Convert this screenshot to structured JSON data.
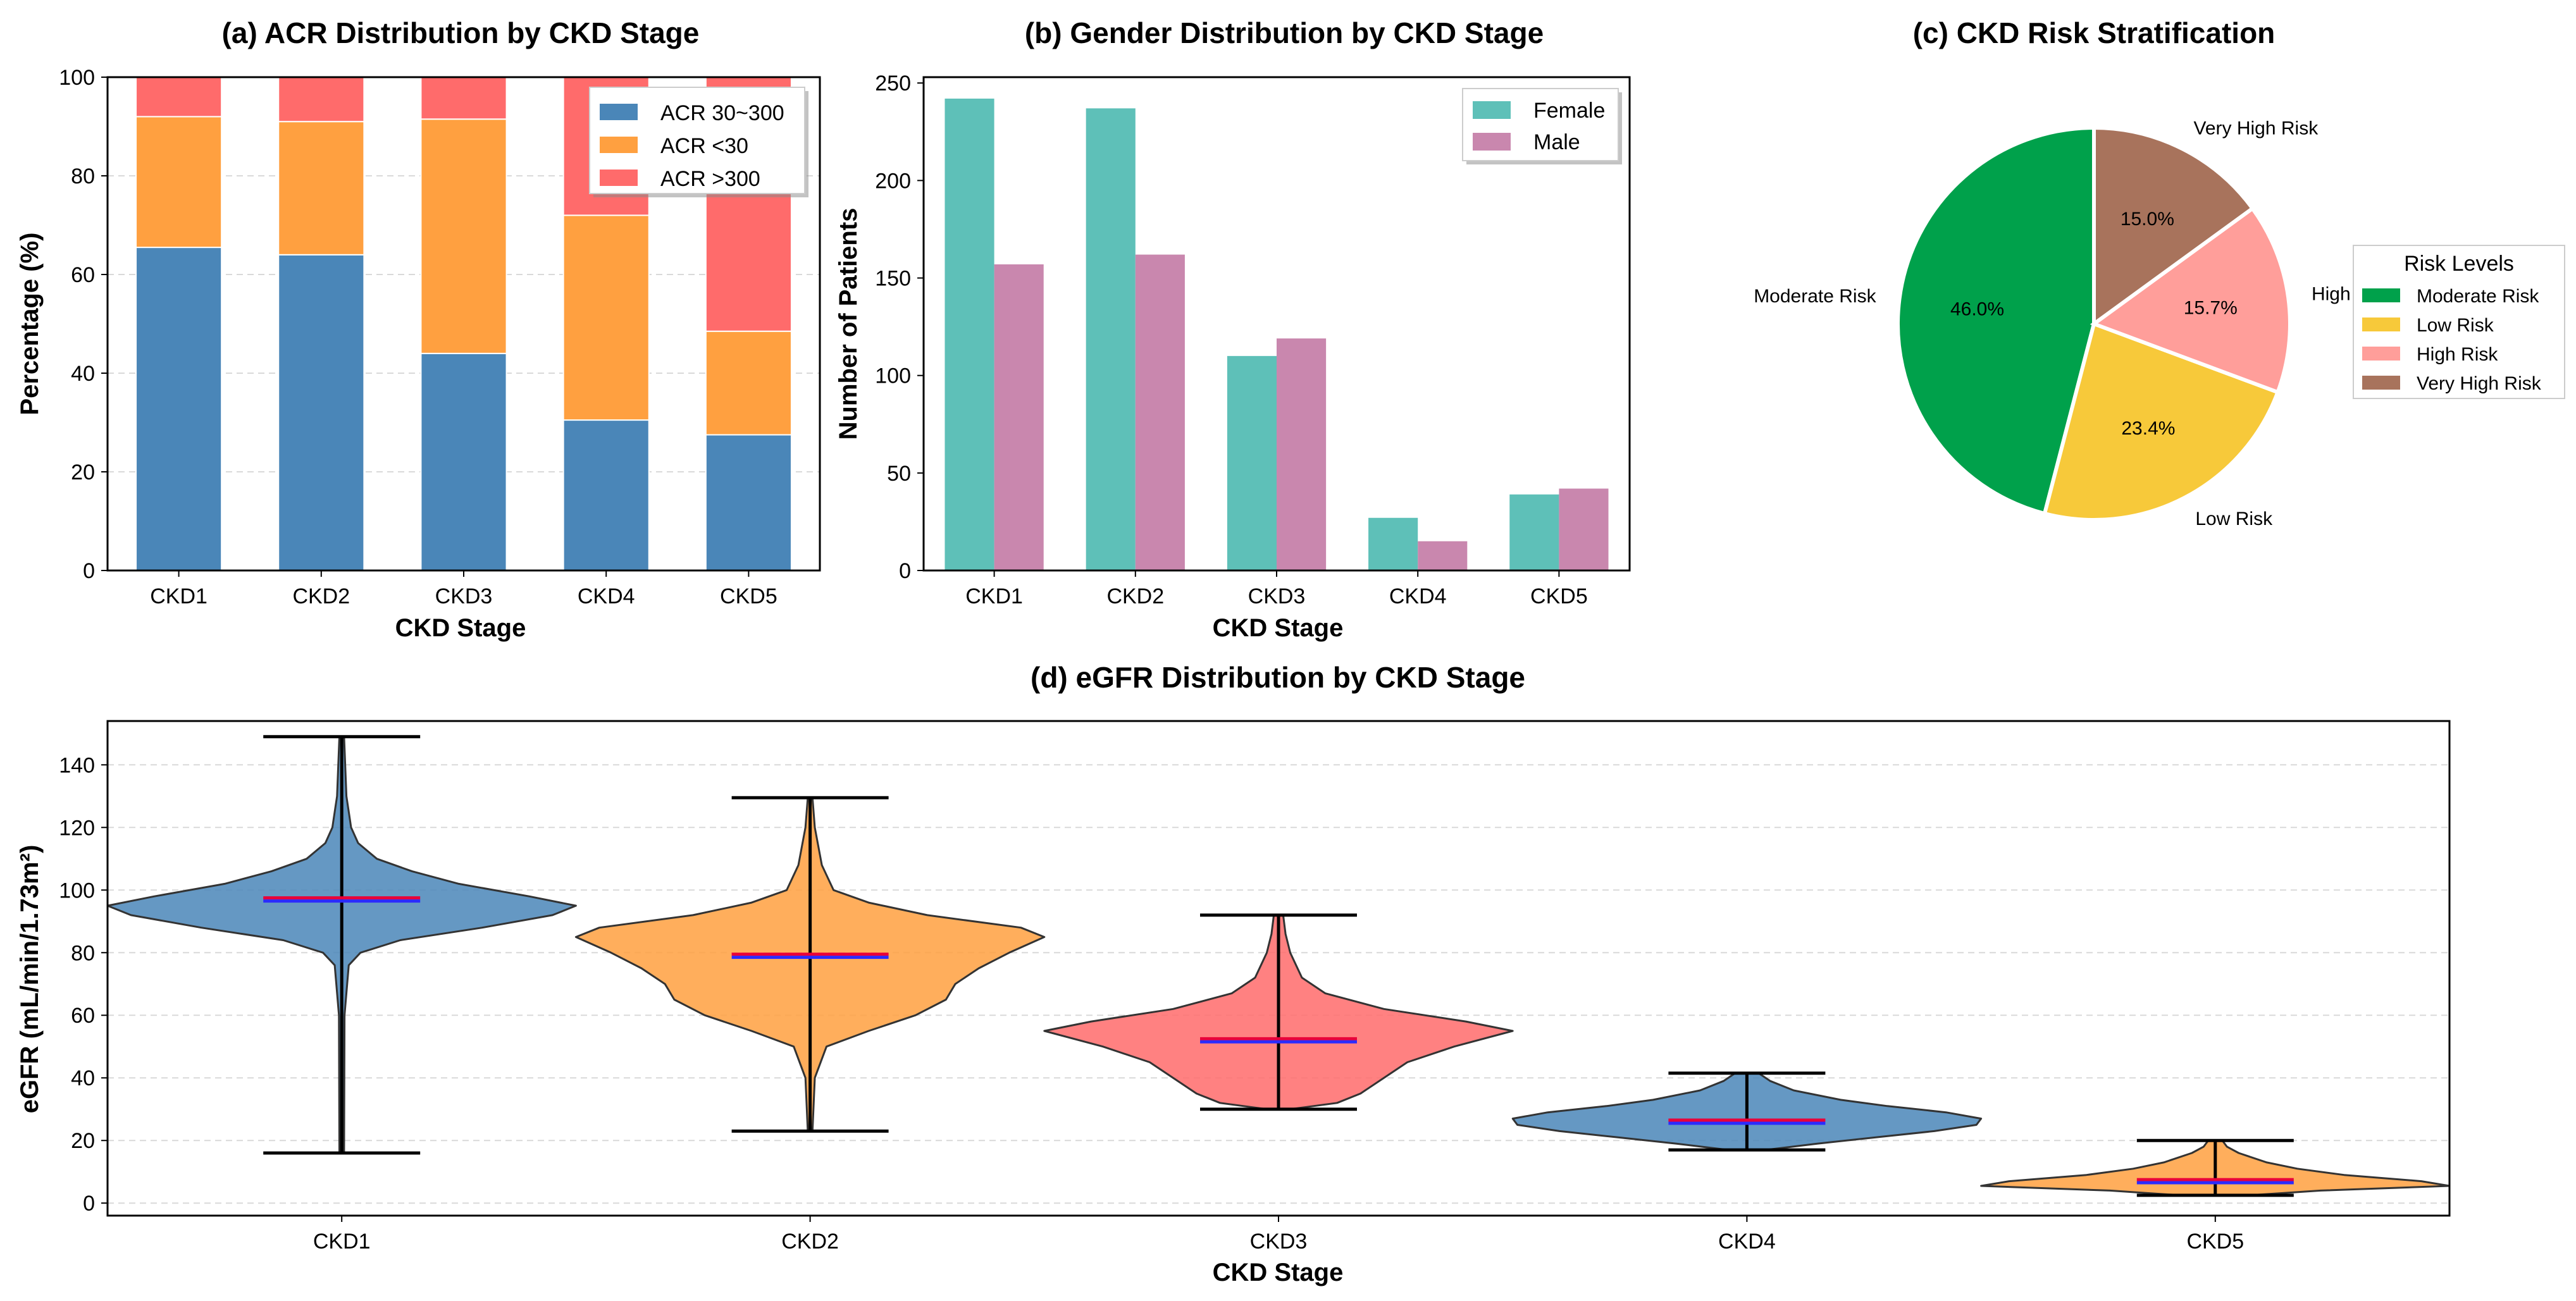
{
  "chart_data": [
    {
      "panel": "a",
      "type": "bar",
      "stacked": true,
      "title": "(a) ACR Distribution by CKD Stage",
      "xlabel": "CKD Stage",
      "ylabel": "Percentage (%)",
      "categories": [
        "CKD1",
        "CKD2",
        "CKD3",
        "CKD4",
        "CKD5"
      ],
      "ylim": [
        0,
        100
      ],
      "yticks": [
        0,
        20,
        40,
        60,
        80,
        100
      ],
      "series": [
        {
          "name": "ACR 30~300",
          "color": "#4a86b8",
          "values": [
            65.5,
            64.0,
            44.0,
            30.5,
            27.5
          ]
        },
        {
          "name": "ACR <30",
          "color": "#ffa040",
          "values": [
            26.5,
            27.0,
            47.5,
            41.5,
            21.0
          ]
        },
        {
          "name": "ACR >300",
          "color": "#ff6b6b",
          "values": [
            8.0,
            9.0,
            8.5,
            28.0,
            51.5
          ]
        }
      ],
      "legend_position": "top-right",
      "grid": true
    },
    {
      "panel": "b",
      "type": "bar",
      "grouped": true,
      "title": "(b) Gender Distribution by CKD Stage",
      "xlabel": "CKD Stage",
      "ylabel": "Number of Patients",
      "categories": [
        "CKD1",
        "CKD2",
        "CKD3",
        "CKD4",
        "CKD5"
      ],
      "ylim": [
        0,
        253
      ],
      "yticks": [
        0,
        50,
        100,
        150,
        200,
        250
      ],
      "series": [
        {
          "name": "Female",
          "color": "#5ec0b8",
          "values": [
            242,
            237,
            110,
            27,
            39
          ]
        },
        {
          "name": "Male",
          "color": "#c987ae",
          "values": [
            157,
            162,
            119,
            15,
            42
          ]
        }
      ],
      "legend_position": "top-right",
      "grid": false
    },
    {
      "panel": "c",
      "type": "pie",
      "title": "(c) CKD Risk Stratification",
      "slices": [
        {
          "label": "Moderate Risk",
          "value": 46.0,
          "pct_label": "46.0%",
          "color": "#00a14b"
        },
        {
          "label": "Low Risk",
          "value": 23.4,
          "pct_label": "23.4%",
          "color": "#f7c93a"
        },
        {
          "label": "High Risk",
          "value": 15.7,
          "pct_label": "15.7%",
          "color": "#ff9e9a",
          "outer_label": "High"
        },
        {
          "label": "Very High Risk",
          "value": 15.0,
          "pct_label": "15.0%",
          "color": "#a8735c"
        }
      ],
      "legend_title": "Risk Levels",
      "legend_position": "right"
    },
    {
      "panel": "d",
      "type": "violin",
      "title": "(d) eGFR Distribution by CKD Stage",
      "xlabel": "CKD Stage",
      "ylabel": "eGFR (mL/min/1.73m²)",
      "categories": [
        "CKD1",
        "CKD2",
        "CKD3",
        "CKD4",
        "CKD5"
      ],
      "ylim": [
        -4,
        154
      ],
      "yticks": [
        0,
        20,
        40,
        60,
        80,
        100,
        120,
        140
      ],
      "grid": true,
      "violins": [
        {
          "category": "CKD1",
          "min": 16,
          "max": 149,
          "mean": 97.5,
          "median": 96.5,
          "color": "#4a86b8",
          "density": [
            [
              16,
              0.01
            ],
            [
              60,
              0.012
            ],
            [
              76,
              0.03
            ],
            [
              80,
              0.08
            ],
            [
              84,
              0.25
            ],
            [
              88,
              0.6
            ],
            [
              92,
              0.9
            ],
            [
              95,
              1.0
            ],
            [
              98,
              0.8
            ],
            [
              102,
              0.5
            ],
            [
              106,
              0.3
            ],
            [
              110,
              0.15
            ],
            [
              115,
              0.07
            ],
            [
              120,
              0.04
            ],
            [
              130,
              0.02
            ],
            [
              149,
              0.01
            ]
          ]
        },
        {
          "category": "CKD2",
          "min": 23,
          "max": 129.5,
          "mean": 79.5,
          "median": 78.5,
          "color": "#ffa040",
          "density": [
            [
              23,
              0.01
            ],
            [
              40,
              0.02
            ],
            [
              50,
              0.07
            ],
            [
              55,
              0.25
            ],
            [
              60,
              0.45
            ],
            [
              65,
              0.58
            ],
            [
              70,
              0.62
            ],
            [
              75,
              0.72
            ],
            [
              80,
              0.85
            ],
            [
              85,
              1.0
            ],
            [
              88,
              0.9
            ],
            [
              92,
              0.5
            ],
            [
              96,
              0.25
            ],
            [
              100,
              0.1
            ],
            [
              108,
              0.05
            ],
            [
              120,
              0.02
            ],
            [
              129.5,
              0.01
            ]
          ]
        },
        {
          "category": "CKD3",
          "min": 30,
          "max": 92,
          "mean": 52.5,
          "median": 51.5,
          "color": "#ff6b6b",
          "density": [
            [
              30,
              0.05
            ],
            [
              32,
              0.25
            ],
            [
              35,
              0.35
            ],
            [
              40,
              0.45
            ],
            [
              45,
              0.55
            ],
            [
              50,
              0.75
            ],
            [
              55,
              1.0
            ],
            [
              58,
              0.8
            ],
            [
              62,
              0.45
            ],
            [
              67,
              0.2
            ],
            [
              72,
              0.1
            ],
            [
              80,
              0.05
            ],
            [
              86,
              0.03
            ],
            [
              92,
              0.02
            ]
          ]
        },
        {
          "category": "CKD4",
          "min": 17,
          "max": 41.5,
          "mean": 26.5,
          "median": 25.5,
          "color": "#4a86b8",
          "density": [
            [
              17,
              0.08
            ],
            [
              19,
              0.3
            ],
            [
              21,
              0.55
            ],
            [
              23,
              0.8
            ],
            [
              25,
              0.98
            ],
            [
              27,
              1.0
            ],
            [
              29,
              0.85
            ],
            [
              31,
              0.6
            ],
            [
              33,
              0.4
            ],
            [
              36,
              0.2
            ],
            [
              39,
              0.1
            ],
            [
              41.5,
              0.05
            ]
          ]
        },
        {
          "category": "CKD5",
          "min": 2.5,
          "max": 20,
          "mean": 7.5,
          "median": 6.5,
          "color": "#ffa040",
          "density": [
            [
              2.5,
              0.15
            ],
            [
              4,
              0.45
            ],
            [
              5.5,
              1.0
            ],
            [
              7,
              0.88
            ],
            [
              9,
              0.55
            ],
            [
              11,
              0.35
            ],
            [
              13,
              0.22
            ],
            [
              16,
              0.1
            ],
            [
              18,
              0.05
            ],
            [
              20,
              0.03
            ]
          ]
        }
      ],
      "mean_line_color": "#e8003a",
      "median_line_color": "#2b2bff"
    }
  ]
}
